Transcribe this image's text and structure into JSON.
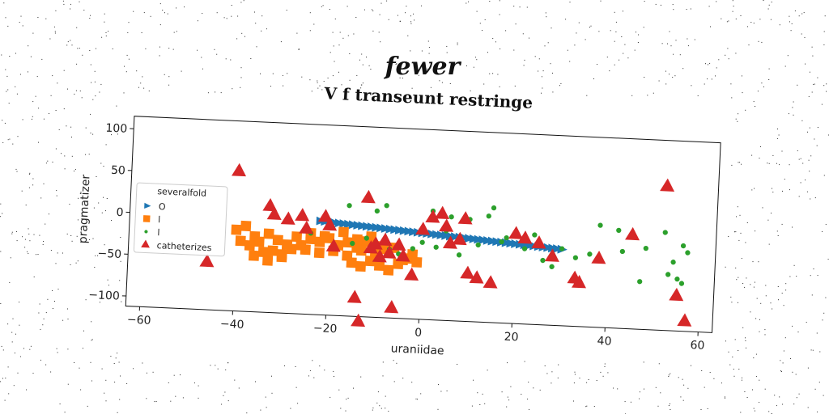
{
  "figure": {
    "suptitle": "fewer"
  },
  "chart_data": {
    "type": "scatter",
    "title": "V f transeunt restringe",
    "xlabel": "uraniidae",
    "ylabel": "pragmatizer",
    "xlim": [
      -63,
      63
    ],
    "ylim": [
      -112,
      115
    ],
    "xticks": [
      -60,
      -40,
      -20,
      0,
      20,
      40,
      60
    ],
    "yticks": [
      -100,
      -50,
      0,
      50,
      100
    ],
    "grid": false,
    "legend": {
      "title": "severalfold",
      "placement": "center-left",
      "entries": [
        "O",
        "l",
        "l",
        "catheterizes"
      ]
    },
    "series": [
      {
        "name": "O",
        "marker": "triangle-right",
        "color": "#1f77b4",
        "x": [
          -22,
          -21,
          -20,
          -19,
          -18,
          -17,
          -16,
          -15,
          -14,
          -13,
          -12,
          -11,
          -10,
          -9,
          -8,
          -7,
          -6,
          -5,
          -4,
          -3,
          -2,
          -1,
          0,
          1,
          2,
          3,
          4,
          5,
          6,
          7,
          8,
          9,
          10,
          11,
          12,
          13,
          14,
          15,
          16,
          17,
          18,
          19,
          20,
          21,
          22,
          23,
          24,
          25,
          26,
          27,
          28,
          29,
          30
        ],
        "y": [
          0,
          -0.4,
          -0.8,
          -1.2,
          -1.6,
          -2,
          -2.4,
          -2.8,
          -3.2,
          -3.6,
          -4,
          -4.4,
          -4.8,
          -5.2,
          -5.6,
          -6,
          -6.4,
          -6.8,
          -7.2,
          -7.6,
          -8,
          -8.4,
          -8.8,
          -9.2,
          -9.6,
          -10,
          -10.4,
          -10.8,
          -11.2,
          -11.6,
          -12,
          -12.4,
          -12.8,
          -13.2,
          -13.6,
          -14,
          -14.4,
          -14.8,
          -15.2,
          -15.6,
          -16,
          -16.4,
          -16.8,
          -17.2,
          -17.6,
          -18,
          -18.4,
          -18.8,
          -19.2,
          -19.6,
          -20,
          -20.4,
          -20.8
        ]
      },
      {
        "name": "l",
        "marker": "square",
        "color": "#ff7f0e",
        "x": [
          -40,
          -38,
          -36,
          -35,
          -33,
          -31,
          -29,
          -27,
          -25,
          -39,
          -37,
          -34,
          -32,
          -30,
          -28,
          -36,
          -33,
          -30,
          -26,
          -24,
          -22,
          -20,
          -18,
          -16,
          -14,
          -12,
          -10,
          -22,
          -19,
          -16,
          -13,
          -10,
          -8,
          -6,
          -4,
          -2,
          -15,
          -13,
          -11,
          -9,
          -7,
          -5,
          -3,
          -1,
          -24,
          -21,
          -17,
          -14,
          -11
        ],
        "y": [
          -15,
          -10,
          -22,
          -28,
          -18,
          -25,
          -30,
          -20,
          -35,
          -28,
          -33,
          -40,
          -38,
          -45,
          -35,
          -45,
          -50,
          -42,
          -30,
          -22,
          -25,
          -20,
          -28,
          -24,
          -30,
          -22,
          -27,
          -38,
          -35,
          -40,
          -33,
          -37,
          -30,
          -28,
          -42,
          -35,
          -48,
          -52,
          -45,
          -50,
          -55,
          -47,
          -40,
          -44,
          -15,
          -18,
          -12,
          -20,
          -16
        ]
      },
      {
        "name": "l",
        "marker": "circle",
        "color": "#2ca02c",
        "x": [
          -24,
          -15,
          -12,
          -7,
          -2,
          3,
          8,
          12,
          17,
          22,
          28,
          33,
          38,
          43,
          48,
          52,
          54,
          55,
          56,
          57,
          -16,
          -10,
          -5,
          0,
          5,
          10,
          14,
          18,
          24,
          30,
          36,
          42,
          47,
          53,
          56,
          -8,
          2,
          6,
          15,
          26
        ],
        "y": [
          -15,
          -25,
          -18,
          -30,
          -28,
          -25,
          -33,
          -20,
          -15,
          -22,
          -42,
          -30,
          10,
          -20,
          -15,
          5,
          -30,
          -50,
          -10,
          -18,
          20,
          15,
          -35,
          -20,
          -5,
          10,
          15,
          -10,
          -5,
          -20,
          -25,
          5,
          -55,
          -45,
          -55,
          22,
          18,
          12,
          25,
          -35
        ]
      },
      {
        "name": "catheterizes",
        "marker": "triangle-up",
        "color": "#d62728",
        "x": [
          -46,
          -40,
          -33,
          -32,
          -29,
          -26,
          -25,
          -21,
          -20,
          -19,
          -14,
          -13,
          -12,
          -11,
          -10,
          -9,
          -8,
          -7,
          -6,
          -5,
          -4,
          -2,
          0,
          2,
          4,
          5,
          6,
          8,
          9,
          10,
          12,
          15,
          20,
          22,
          25,
          28,
          33,
          34,
          38,
          45,
          52,
          55,
          57
        ],
        "y": [
          -55,
          55,
          15,
          5,
          0,
          5,
          -10,
          5,
          -5,
          -30,
          -90,
          -118,
          30,
          -30,
          -25,
          -40,
          -20,
          -35,
          -100,
          -25,
          -38,
          -60,
          -5,
          10,
          15,
          0,
          -20,
          -15,
          10,
          -55,
          -60,
          -65,
          -5,
          -10,
          -15,
          -30,
          -55,
          -60,
          -30,
          0,
          60,
          -70,
          -100
        ]
      }
    ]
  }
}
